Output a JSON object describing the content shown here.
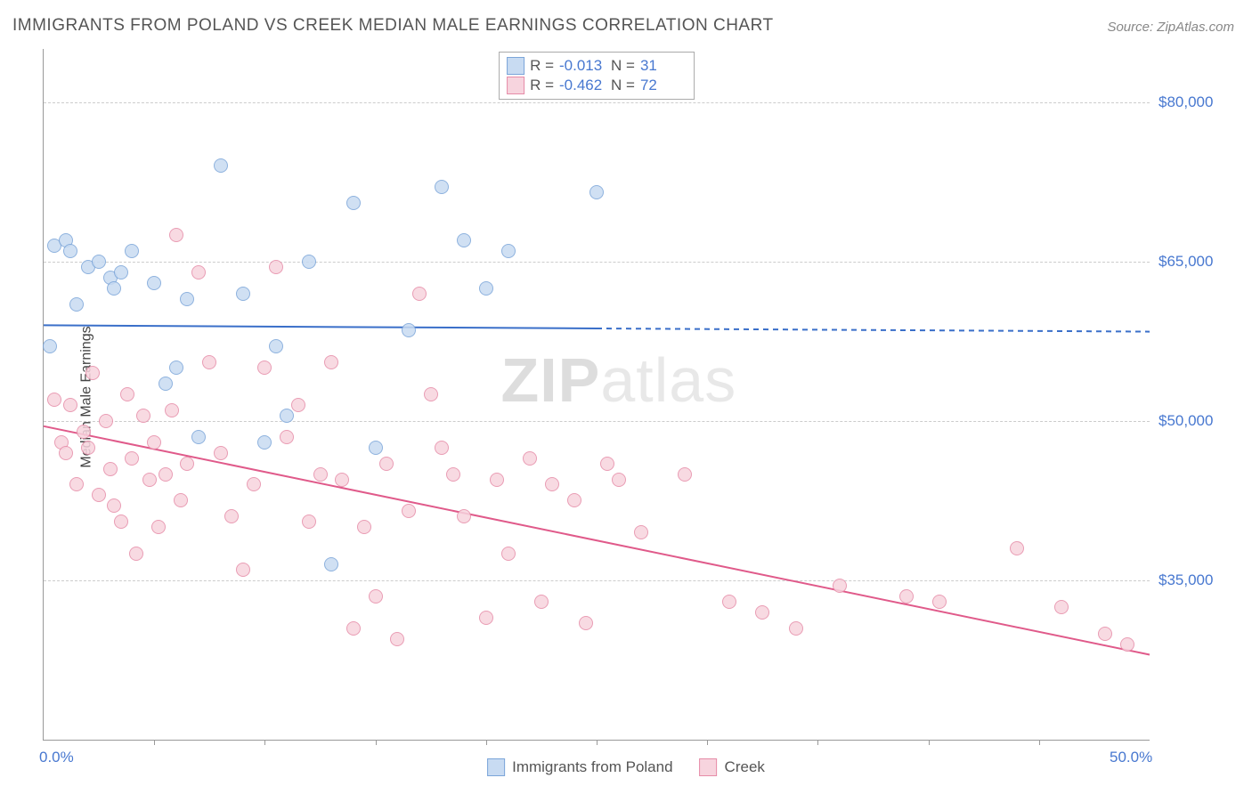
{
  "title": "IMMIGRANTS FROM POLAND VS CREEK MEDIAN MALE EARNINGS CORRELATION CHART",
  "source": "Source: ZipAtlas.com",
  "ylabel": "Median Male Earnings",
  "watermark_a": "ZIP",
  "watermark_b": "atlas",
  "chart": {
    "type": "scatter",
    "xlim": [
      0,
      50
    ],
    "ylim": [
      20000,
      85000
    ],
    "ytick_values": [
      35000,
      50000,
      65000,
      80000
    ],
    "ytick_labels": [
      "$35,000",
      "$50,000",
      "$65,000",
      "$80,000"
    ],
    "xtick_values": [
      0,
      50
    ],
    "xtick_labels": [
      "0.0%",
      "50.0%"
    ],
    "minor_ticks_x": [
      5,
      10,
      15,
      20,
      25,
      30,
      35,
      40,
      45
    ],
    "background_color": "#ffffff",
    "grid_color": "#cccccc",
    "series": [
      {
        "name": "Immigrants from Poland",
        "marker_fill": "#c8dbf2",
        "marker_stroke": "#7ba5d9",
        "marker_size": 16,
        "line_color": "#3a6fc9",
        "line_width": 2,
        "R": "-0.013",
        "N": "31",
        "trend_y_start": 59000,
        "trend_y_end": 58400,
        "trend_x_solid_end": 25,
        "points": [
          [
            0.3,
            57000
          ],
          [
            0.5,
            66500
          ],
          [
            1.0,
            67000
          ],
          [
            1.2,
            66000
          ],
          [
            1.5,
            61000
          ],
          [
            2.0,
            64500
          ],
          [
            2.5,
            65000
          ],
          [
            3.0,
            63500
          ],
          [
            3.2,
            62500
          ],
          [
            3.5,
            64000
          ],
          [
            4.0,
            66000
          ],
          [
            5.0,
            63000
          ],
          [
            5.5,
            53500
          ],
          [
            6.0,
            55000
          ],
          [
            6.5,
            61500
          ],
          [
            7.0,
            48500
          ],
          [
            8.0,
            74000
          ],
          [
            9.0,
            62000
          ],
          [
            10.0,
            48000
          ],
          [
            10.5,
            57000
          ],
          [
            11.0,
            50500
          ],
          [
            12.0,
            65000
          ],
          [
            13.0,
            36500
          ],
          [
            14.0,
            70500
          ],
          [
            15.0,
            47500
          ],
          [
            16.5,
            58500
          ],
          [
            18.0,
            72000
          ],
          [
            19.0,
            67000
          ],
          [
            20.0,
            62500
          ],
          [
            21.0,
            66000
          ],
          [
            25.0,
            71500
          ]
        ]
      },
      {
        "name": "Creek",
        "marker_fill": "#f7d4de",
        "marker_stroke": "#e68ca8",
        "marker_size": 16,
        "line_color": "#e05a8a",
        "line_width": 2,
        "R": "-0.462",
        "N": "72",
        "trend_y_start": 49500,
        "trend_y_end": 28000,
        "trend_x_solid_end": 50,
        "points": [
          [
            0.5,
            52000
          ],
          [
            0.8,
            48000
          ],
          [
            1.0,
            47000
          ],
          [
            1.2,
            51500
          ],
          [
            1.5,
            44000
          ],
          [
            1.8,
            49000
          ],
          [
            2.0,
            47500
          ],
          [
            2.2,
            54500
          ],
          [
            2.5,
            43000
          ],
          [
            2.8,
            50000
          ],
          [
            3.0,
            45500
          ],
          [
            3.2,
            42000
          ],
          [
            3.5,
            40500
          ],
          [
            3.8,
            52500
          ],
          [
            4.0,
            46500
          ],
          [
            4.2,
            37500
          ],
          [
            4.5,
            50500
          ],
          [
            4.8,
            44500
          ],
          [
            5.0,
            48000
          ],
          [
            5.2,
            40000
          ],
          [
            5.5,
            45000
          ],
          [
            5.8,
            51000
          ],
          [
            6.0,
            67500
          ],
          [
            6.2,
            42500
          ],
          [
            6.5,
            46000
          ],
          [
            7.0,
            64000
          ],
          [
            7.5,
            55500
          ],
          [
            8.0,
            47000
          ],
          [
            8.5,
            41000
          ],
          [
            9.0,
            36000
          ],
          [
            9.5,
            44000
          ],
          [
            10.0,
            55000
          ],
          [
            10.5,
            64500
          ],
          [
            11.0,
            48500
          ],
          [
            11.5,
            51500
          ],
          [
            12.0,
            40500
          ],
          [
            12.5,
            45000
          ],
          [
            13.0,
            55500
          ],
          [
            13.5,
            44500
          ],
          [
            14.0,
            30500
          ],
          [
            14.5,
            40000
          ],
          [
            15.0,
            33500
          ],
          [
            15.5,
            46000
          ],
          [
            16.0,
            29500
          ],
          [
            16.5,
            41500
          ],
          [
            17.0,
            62000
          ],
          [
            17.5,
            52500
          ],
          [
            18.0,
            47500
          ],
          [
            18.5,
            45000
          ],
          [
            19.0,
            41000
          ],
          [
            20.0,
            31500
          ],
          [
            20.5,
            44500
          ],
          [
            21.0,
            37500
          ],
          [
            22.0,
            46500
          ],
          [
            22.5,
            33000
          ],
          [
            23.0,
            44000
          ],
          [
            24.0,
            42500
          ],
          [
            24.5,
            31000
          ],
          [
            25.5,
            46000
          ],
          [
            26.0,
            44500
          ],
          [
            27.0,
            39500
          ],
          [
            29.0,
            45000
          ],
          [
            31.0,
            33000
          ],
          [
            32.5,
            32000
          ],
          [
            34.0,
            30500
          ],
          [
            36.0,
            34500
          ],
          [
            39.0,
            33500
          ],
          [
            40.5,
            33000
          ],
          [
            44.0,
            38000
          ],
          [
            46.0,
            32500
          ],
          [
            48.0,
            30000
          ],
          [
            49.0,
            29000
          ]
        ]
      }
    ]
  },
  "legend": {
    "stats_label_R": "R  =",
    "stats_label_N": "N  =",
    "series1_label": "Immigrants from Poland",
    "series2_label": "Creek"
  }
}
